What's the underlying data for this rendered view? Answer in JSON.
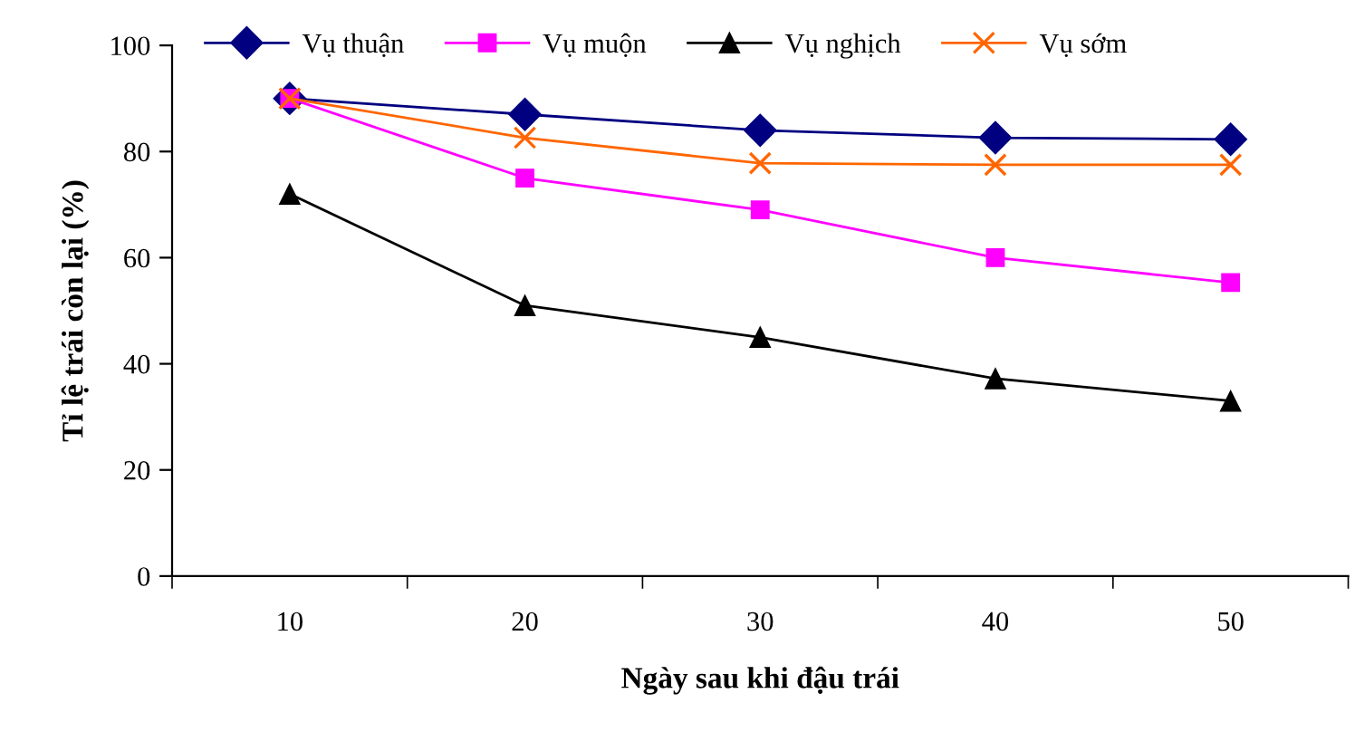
{
  "chart_data": {
    "type": "line",
    "xlabel": "Ngày sau khi đậu trái",
    "ylabel": "Tỉ lệ trái còn lại (%)",
    "categories": [
      "10",
      "20",
      "30",
      "40",
      "50"
    ],
    "series": [
      {
        "name": "Vụ thuận",
        "color": "#000080",
        "marker": "diamond",
        "values": [
          90,
          87,
          84,
          82.6,
          82.3
        ]
      },
      {
        "name": "Vụ muộn",
        "color": "#ff00ff",
        "marker": "square",
        "values": [
          90,
          75,
          69,
          60,
          55.3
        ]
      },
      {
        "name": "Vụ nghịch",
        "color": "#000000",
        "marker": "triangle",
        "values": [
          72,
          51,
          45,
          37.2,
          33
        ]
      },
      {
        "name": "Vụ sớm",
        "color": "#ff6600",
        "marker": "cross",
        "values": [
          90,
          82.6,
          77.8,
          77.5,
          77.5
        ]
      }
    ],
    "ylim": [
      0,
      100
    ],
    "yticks": [
      0,
      20,
      40,
      60,
      80,
      100
    ],
    "grid": false,
    "legend": "top",
    "line_style": "solid"
  }
}
